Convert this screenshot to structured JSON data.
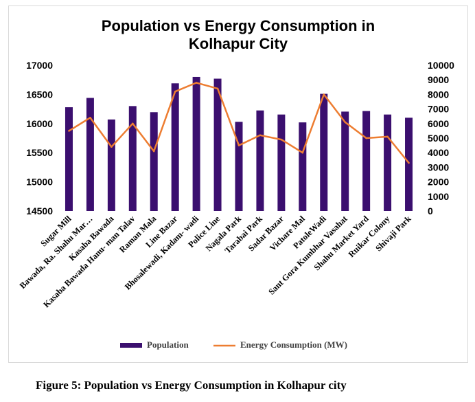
{
  "chart_data": {
    "type": "bar",
    "title_lines": [
      "Population vs Energy Consumption in",
      "Kolhapur City"
    ],
    "categories": [
      "Sugar Mill",
      "Bawada, Ra. Shahu Mar…",
      "Kasaba Bawada",
      "Kasaba Bawada Hanu- man Talav",
      "Raman Mala",
      "Line Bazar",
      "Bhosalewadi, Kadam- wadi",
      "Police Line",
      "Nagala Park",
      "Tarabai Park",
      "Sadar Bazar",
      "Vichare Mal",
      "PatoleWadi",
      "Sant Gora Kumbhar Vasahat",
      "Shahu Market Yard",
      "Ruikar Colony",
      "Shivaji Park"
    ],
    "series": [
      {
        "name": "Population",
        "type": "bar",
        "axis": "left",
        "color": "#3b0f6f",
        "values": [
          16280,
          16440,
          16070,
          16300,
          16195,
          16690,
          16800,
          16770,
          16030,
          16225,
          16155,
          16020,
          16510,
          16205,
          16215,
          16155,
          16100
        ]
      },
      {
        "name": "Energy Consumption (MW)",
        "type": "line",
        "axis": "right",
        "color": "#ed7d31",
        "values": [
          5500,
          6400,
          4400,
          6000,
          4100,
          8200,
          8800,
          8400,
          4500,
          5200,
          4900,
          4000,
          8000,
          6100,
          5000,
          5100,
          3300
        ]
      }
    ],
    "y_left": {
      "min": 14500,
      "max": 17000,
      "ticks": [
        14500,
        15000,
        15500,
        16000,
        16500,
        17000
      ]
    },
    "y_right": {
      "min": 0,
      "max": 10000,
      "ticks": [
        0,
        1000,
        2000,
        3000,
        4000,
        5000,
        6000,
        7000,
        8000,
        9000,
        10000
      ]
    },
    "grid": false,
    "legend_position": "bottom"
  },
  "caption": "Figure 5: Population vs Energy Consumption in Kolhapur city"
}
